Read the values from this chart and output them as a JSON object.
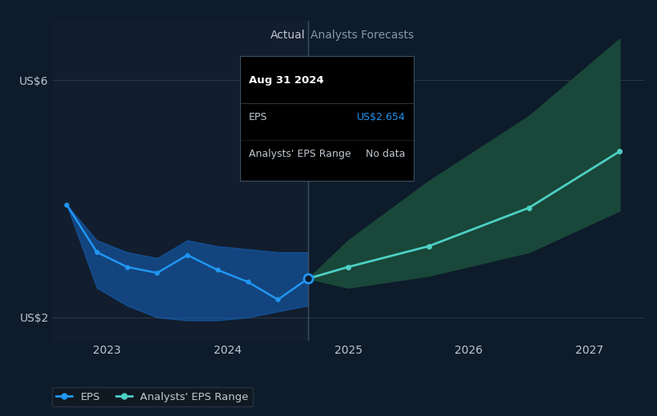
{
  "bg_color": "#0d1b2a",
  "plot_bg_color": "#0d1b2a",
  "grid_color": "#2a3a4a",
  "divider_x": 2024.667,
  "ylim": [
    1.6,
    7.0
  ],
  "xlim": [
    2022.55,
    2027.45
  ],
  "ytick_vals": [
    2.0,
    6.0
  ],
  "ytick_labels": [
    "US$2",
    "US$6"
  ],
  "xtick_vals": [
    2023,
    2024,
    2025,
    2026,
    2027
  ],
  "xtick_labels": [
    "2023",
    "2024",
    "2025",
    "2026",
    "2027"
  ],
  "eps_x": [
    2022.667,
    2022.917,
    2023.167,
    2023.417,
    2023.667,
    2023.917,
    2024.167,
    2024.417,
    2024.667
  ],
  "eps_y": [
    3.9,
    3.1,
    2.85,
    2.75,
    3.05,
    2.8,
    2.6,
    2.3,
    2.654
  ],
  "eps_band_upper": [
    3.9,
    3.3,
    3.1,
    3.0,
    3.3,
    3.2,
    3.15,
    3.1,
    3.1
  ],
  "eps_band_lower": [
    3.9,
    2.5,
    2.2,
    2.0,
    1.95,
    1.95,
    2.0,
    2.1,
    2.2
  ],
  "eps_color": "#2196f3",
  "eps_band_color": "#1565c0",
  "forecast_x": [
    2024.667,
    2025.0,
    2025.667,
    2026.5,
    2027.25
  ],
  "forecast_y": [
    2.654,
    2.85,
    3.2,
    3.85,
    4.8
  ],
  "forecast_band_upper": [
    2.654,
    3.3,
    4.3,
    5.4,
    6.7
  ],
  "forecast_band_lower": [
    2.654,
    2.5,
    2.7,
    3.1,
    3.8
  ],
  "forecast_color": "#4dd0c4",
  "forecast_band_color": "#1a4a3a",
  "actual_label": "Actual",
  "forecast_label": "Analysts Forecasts",
  "tooltip_date": "Aug 31 2024",
  "tooltip_eps_label": "EPS",
  "tooltip_eps_value": "US$2.654",
  "tooltip_range_label": "Analysts' EPS Range",
  "tooltip_range_value": "No data",
  "tooltip_eps_color": "#2196f3",
  "legend_eps_label": "EPS",
  "legend_range_label": "Analysts' EPS Range",
  "text_color": "#c0c8d0",
  "label_color": "#8899aa"
}
